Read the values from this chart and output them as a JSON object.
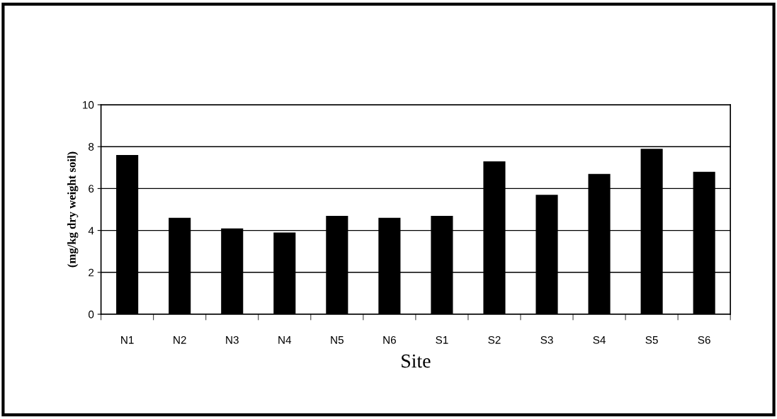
{
  "chart_data": {
    "type": "bar",
    "xlabel": "Site",
    "ylabel": "(mg/kg dry weight soil)",
    "categories": [
      "N1",
      "N2",
      "N3",
      "N4",
      "N5",
      "N6",
      "S1",
      "S2",
      "S3",
      "S4",
      "S5",
      "S6"
    ],
    "values": [
      7.6,
      4.6,
      4.1,
      3.9,
      4.7,
      4.6,
      4.7,
      7.3,
      5.7,
      6.7,
      7.9,
      6.8
    ],
    "color": "#000000",
    "ylim": [
      0,
      10
    ],
    "yticks": [
      0,
      2,
      4,
      6,
      8,
      10
    ],
    "grid": "y"
  }
}
